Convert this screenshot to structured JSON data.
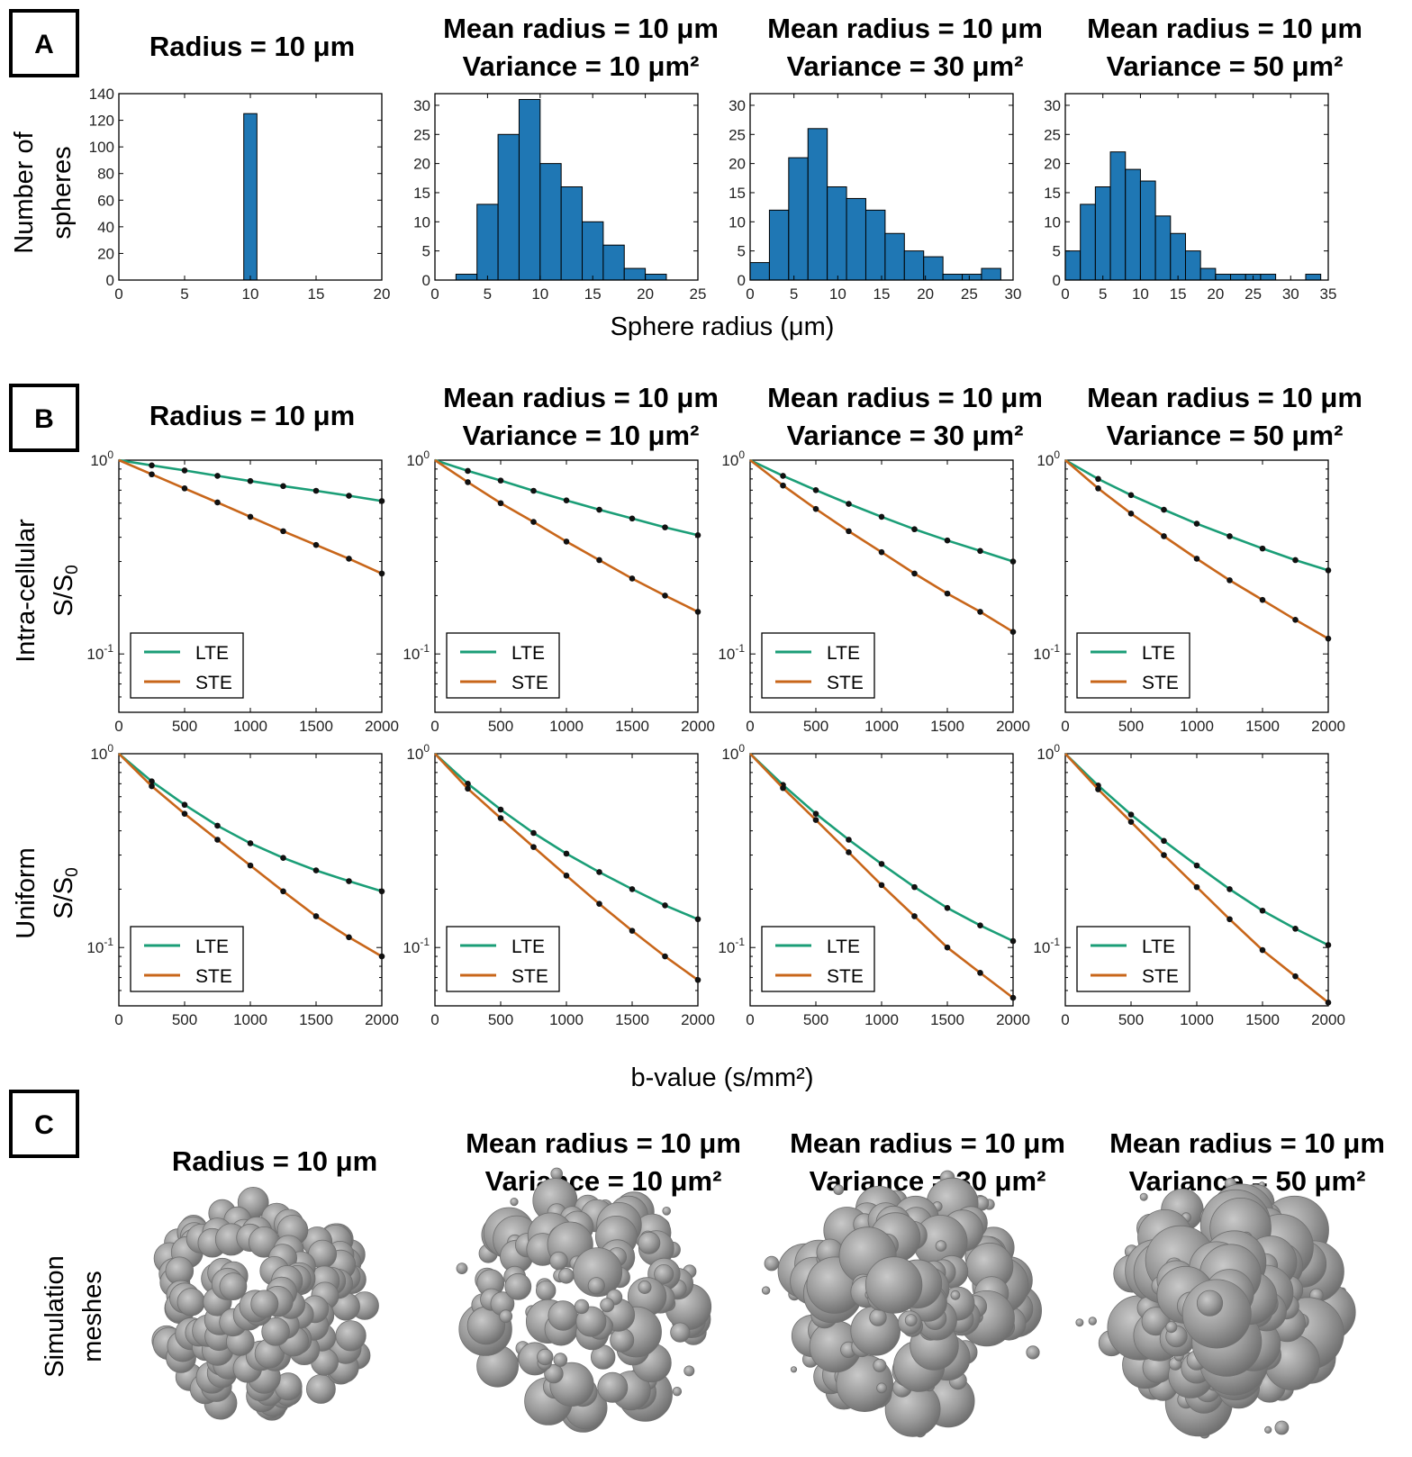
{
  "panels": {
    "A": "A",
    "B": "B",
    "C": "C"
  },
  "titles": [
    {
      "line1": "Radius = 10 μm",
      "line2": ""
    },
    {
      "line1": "Mean radius = 10 μm",
      "line2": "Variance = 10 μm²"
    },
    {
      "line1": "Mean radius = 10 μm",
      "line2": "Variance = 30 μm²"
    },
    {
      "line1": "Mean radius = 10 μm",
      "line2": "Variance = 50 μm²"
    }
  ],
  "labels": {
    "hist_y_line1": "Number of",
    "hist_y_line2": "spheres",
    "hist_x": "Sphere radius (μm)",
    "intra_y_line1": "Intra-cellular",
    "uniform_y_line1": "Uniform",
    "signal_y": "S/S",
    "signal_y_sub": "0",
    "signal_x": "b-value (s/mm²)",
    "mesh_y_line1": "Simulation",
    "mesh_y_line2": "meshes"
  },
  "colors": {
    "bar": "#1f77b4",
    "lte": "#1b9e77",
    "ste": "#c8661a",
    "mesh": "#8f8f8f"
  },
  "chart_data": [
    {
      "type": "bar",
      "title": "Radius = 10 μm",
      "xlim": [
        0,
        20
      ],
      "ylim": [
        0,
        140
      ],
      "xticks": [
        0,
        5,
        10,
        15,
        20
      ],
      "yticks": [
        0,
        20,
        40,
        60,
        80,
        100,
        120,
        140
      ],
      "bin_width": 1,
      "bins": [
        {
          "x": 9.5,
          "value": 125
        }
      ],
      "xlabel": "",
      "ylabel": "Number of spheres"
    },
    {
      "type": "bar",
      "title": "Mean radius = 10 μm, Variance = 10 μm²",
      "xlim": [
        0,
        25
      ],
      "ylim": [
        0,
        32
      ],
      "xticks": [
        0,
        5,
        10,
        15,
        20,
        25
      ],
      "yticks": [
        0,
        5,
        10,
        15,
        20,
        25,
        30
      ],
      "bin_width": 2,
      "bins": [
        {
          "x": 2,
          "value": 1
        },
        {
          "x": 4,
          "value": 13
        },
        {
          "x": 6,
          "value": 25
        },
        {
          "x": 8,
          "value": 31
        },
        {
          "x": 10,
          "value": 20
        },
        {
          "x": 12,
          "value": 16
        },
        {
          "x": 14,
          "value": 10
        },
        {
          "x": 16,
          "value": 6
        },
        {
          "x": 18,
          "value": 2
        },
        {
          "x": 20,
          "value": 1
        }
      ]
    },
    {
      "type": "bar",
      "title": "Mean radius = 10 μm, Variance = 30 μm²",
      "xlim": [
        0,
        30
      ],
      "ylim": [
        0,
        32
      ],
      "xticks": [
        0,
        5,
        10,
        15,
        20,
        25,
        30
      ],
      "yticks": [
        0,
        5,
        10,
        15,
        20,
        25,
        30
      ],
      "bin_width": 2.2,
      "bins": [
        {
          "x": 0,
          "value": 3
        },
        {
          "x": 2.2,
          "value": 12
        },
        {
          "x": 4.4,
          "value": 21
        },
        {
          "x": 6.6,
          "value": 26
        },
        {
          "x": 8.8,
          "value": 16
        },
        {
          "x": 11,
          "value": 14
        },
        {
          "x": 13.2,
          "value": 12
        },
        {
          "x": 15.4,
          "value": 8
        },
        {
          "x": 17.6,
          "value": 5
        },
        {
          "x": 19.8,
          "value": 4
        },
        {
          "x": 22,
          "value": 1
        },
        {
          "x": 24.2,
          "value": 1
        },
        {
          "x": 26.4,
          "value": 2
        }
      ]
    },
    {
      "type": "bar",
      "title": "Mean radius = 10 μm, Variance = 50 μm²",
      "xlim": [
        0,
        35
      ],
      "ylim": [
        0,
        32
      ],
      "xticks": [
        0,
        5,
        10,
        15,
        20,
        25,
        30,
        35
      ],
      "yticks": [
        0,
        5,
        10,
        15,
        20,
        25,
        30
      ],
      "bin_width": 2,
      "bins": [
        {
          "x": 0,
          "value": 5
        },
        {
          "x": 2,
          "value": 13
        },
        {
          "x": 4,
          "value": 16
        },
        {
          "x": 6,
          "value": 22
        },
        {
          "x": 8,
          "value": 19
        },
        {
          "x": 10,
          "value": 17
        },
        {
          "x": 12,
          "value": 11
        },
        {
          "x": 14,
          "value": 8
        },
        {
          "x": 16,
          "value": 5
        },
        {
          "x": 18,
          "value": 2
        },
        {
          "x": 20,
          "value": 1
        },
        {
          "x": 22,
          "value": 1
        },
        {
          "x": 24,
          "value": 1
        },
        {
          "x": 26,
          "value": 1
        },
        {
          "x": 28,
          "value": 0
        },
        {
          "x": 30,
          "value": 0
        },
        {
          "x": 32,
          "value": 1
        }
      ]
    },
    {
      "type": "line",
      "row": "Intra-cellular",
      "col": 0,
      "x": [
        0,
        250,
        500,
        750,
        1000,
        1250,
        1500,
        1750,
        2000
      ],
      "xlim": [
        0,
        2000
      ],
      "ylim": [
        0.05,
        1
      ],
      "yscale": "log",
      "series": [
        {
          "name": "LTE",
          "values": [
            1,
            0.94,
            0.885,
            0.83,
            0.78,
            0.735,
            0.695,
            0.655,
            0.615
          ]
        },
        {
          "name": "STE",
          "values": [
            1,
            0.845,
            0.715,
            0.605,
            0.51,
            0.43,
            0.365,
            0.31,
            0.26
          ]
        }
      ]
    },
    {
      "type": "line",
      "row": "Intra-cellular",
      "col": 1,
      "x": [
        0,
        250,
        500,
        750,
        1000,
        1250,
        1500,
        1750,
        2000
      ],
      "xlim": [
        0,
        2000
      ],
      "ylim": [
        0.05,
        1
      ],
      "yscale": "log",
      "series": [
        {
          "name": "LTE",
          "values": [
            1,
            0.88,
            0.785,
            0.695,
            0.62,
            0.555,
            0.5,
            0.45,
            0.41
          ]
        },
        {
          "name": "STE",
          "values": [
            1,
            0.77,
            0.6,
            0.48,
            0.38,
            0.305,
            0.245,
            0.2,
            0.165
          ]
        }
      ]
    },
    {
      "type": "line",
      "row": "Intra-cellular",
      "col": 2,
      "x": [
        0,
        250,
        500,
        750,
        1000,
        1250,
        1500,
        1750,
        2000
      ],
      "xlim": [
        0,
        2000
      ],
      "ylim": [
        0.05,
        1
      ],
      "yscale": "log",
      "series": [
        {
          "name": "LTE",
          "values": [
            1,
            0.83,
            0.7,
            0.595,
            0.51,
            0.44,
            0.385,
            0.34,
            0.3
          ]
        },
        {
          "name": "STE",
          "values": [
            1,
            0.74,
            0.56,
            0.43,
            0.335,
            0.26,
            0.205,
            0.165,
            0.13
          ]
        }
      ]
    },
    {
      "type": "line",
      "row": "Intra-cellular",
      "col": 3,
      "x": [
        0,
        250,
        500,
        750,
        1000,
        1250,
        1500,
        1750,
        2000
      ],
      "xlim": [
        0,
        2000
      ],
      "ylim": [
        0.05,
        1
      ],
      "yscale": "log",
      "series": [
        {
          "name": "LTE",
          "values": [
            1,
            0.8,
            0.66,
            0.555,
            0.47,
            0.405,
            0.35,
            0.305,
            0.27
          ]
        },
        {
          "name": "STE",
          "values": [
            1,
            0.715,
            0.53,
            0.405,
            0.31,
            0.24,
            0.19,
            0.15,
            0.12
          ]
        }
      ]
    },
    {
      "type": "line",
      "row": "Uniform",
      "col": 0,
      "x": [
        0,
        250,
        500,
        750,
        1000,
        1250,
        1500,
        1750,
        2000
      ],
      "xlim": [
        0,
        2000
      ],
      "ylim": [
        0.05,
        1
      ],
      "yscale": "log",
      "series": [
        {
          "name": "LTE",
          "values": [
            1,
            0.72,
            0.545,
            0.425,
            0.345,
            0.29,
            0.25,
            0.22,
            0.195
          ]
        },
        {
          "name": "STE",
          "values": [
            1,
            0.68,
            0.49,
            0.36,
            0.265,
            0.195,
            0.145,
            0.113,
            0.09
          ]
        }
      ]
    },
    {
      "type": "line",
      "row": "Uniform",
      "col": 1,
      "x": [
        0,
        250,
        500,
        750,
        1000,
        1250,
        1500,
        1750,
        2000
      ],
      "xlim": [
        0,
        2000
      ],
      "ylim": [
        0.05,
        1
      ],
      "yscale": "log",
      "series": [
        {
          "name": "LTE",
          "values": [
            1,
            0.7,
            0.515,
            0.39,
            0.305,
            0.245,
            0.2,
            0.165,
            0.14
          ]
        },
        {
          "name": "STE",
          "values": [
            1,
            0.66,
            0.465,
            0.33,
            0.235,
            0.168,
            0.122,
            0.09,
            0.068
          ]
        }
      ]
    },
    {
      "type": "line",
      "row": "Uniform",
      "col": 2,
      "x": [
        0,
        250,
        500,
        750,
        1000,
        1250,
        1500,
        1750,
        2000
      ],
      "xlim": [
        0,
        2000
      ],
      "ylim": [
        0.05,
        1
      ],
      "yscale": "log",
      "series": [
        {
          "name": "LTE",
          "values": [
            1,
            0.69,
            0.49,
            0.36,
            0.27,
            0.205,
            0.16,
            0.13,
            0.108
          ]
        },
        {
          "name": "STE",
          "values": [
            1,
            0.665,
            0.455,
            0.31,
            0.21,
            0.145,
            0.1,
            0.074,
            0.055
          ]
        }
      ]
    },
    {
      "type": "line",
      "row": "Uniform",
      "col": 3,
      "x": [
        0,
        250,
        500,
        750,
        1000,
        1250,
        1500,
        1750,
        2000
      ],
      "xlim": [
        0,
        2000
      ],
      "ylim": [
        0.05,
        1
      ],
      "yscale": "log",
      "series": [
        {
          "name": "LTE",
          "values": [
            1,
            0.685,
            0.485,
            0.355,
            0.265,
            0.2,
            0.155,
            0.125,
            0.103
          ]
        },
        {
          "name": "STE",
          "values": [
            1,
            0.655,
            0.445,
            0.3,
            0.205,
            0.14,
            0.097,
            0.071,
            0.052
          ]
        }
      ]
    }
  ],
  "meshes": [
    {
      "name": "mesh-radius-10"
    },
    {
      "name": "mesh-variance-10"
    },
    {
      "name": "mesh-variance-30"
    },
    {
      "name": "mesh-variance-50"
    }
  ]
}
